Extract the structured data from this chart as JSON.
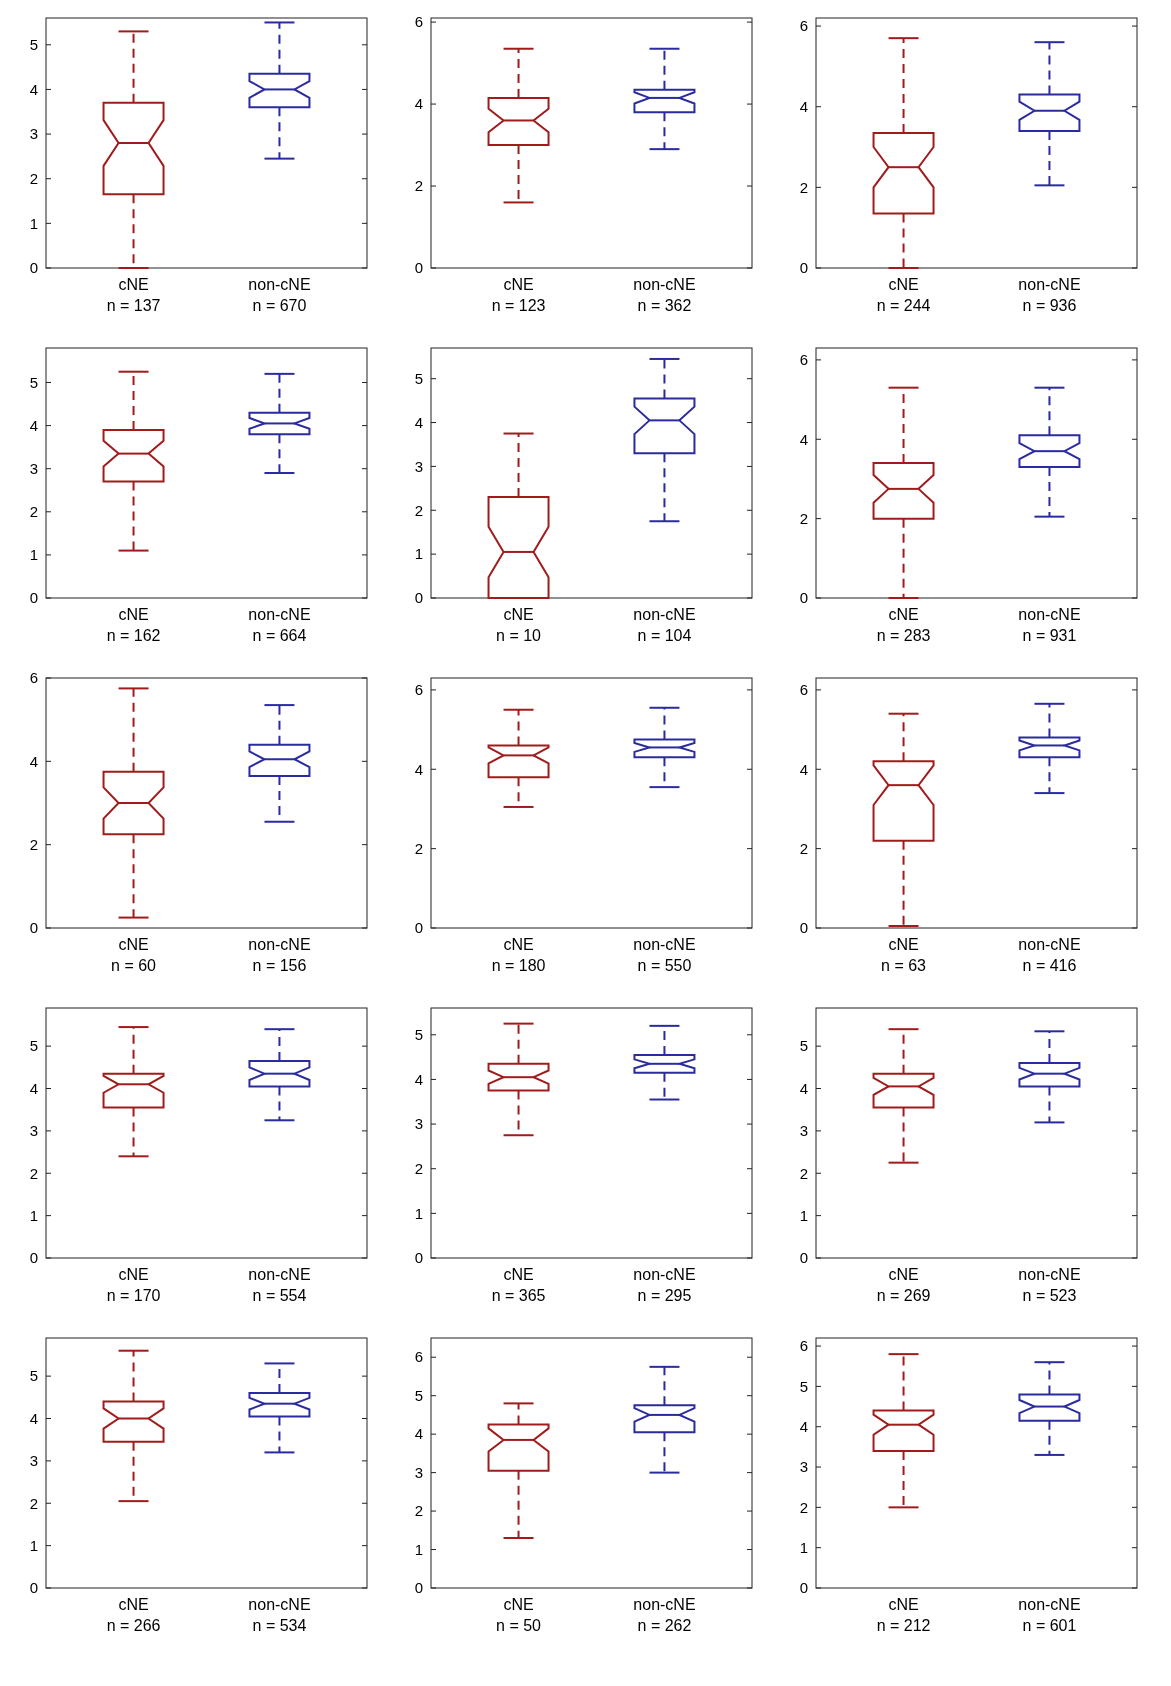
{
  "chart_data": [
    {
      "type": "box",
      "categories": [
        "cNE\nn = 137",
        "non-cNE\nn = 670"
      ],
      "colors": [
        "#a01c1c",
        "#2b2ba0"
      ],
      "ylim": [
        0,
        5.6
      ],
      "yticks": [
        0,
        1,
        2,
        3,
        4,
        5
      ],
      "boxes": [
        {
          "low": 0,
          "q1": 1.65,
          "median": 2.8,
          "q3": 3.7,
          "high": 5.3
        },
        {
          "low": 2.45,
          "q1": 3.6,
          "median": 4.0,
          "q3": 4.35,
          "high": 5.5
        }
      ]
    },
    {
      "type": "box",
      "categories": [
        "cNE\nn = 123",
        "non-cNE\nn = 362"
      ],
      "colors": [
        "#a01c1c",
        "#2b2ba0"
      ],
      "ylim": [
        0,
        6.1
      ],
      "yticks": [
        0,
        2,
        4,
        6
      ],
      "boxes": [
        {
          "low": 1.6,
          "q1": 3.0,
          "median": 3.6,
          "q3": 4.15,
          "high": 5.35
        },
        {
          "low": 2.9,
          "q1": 3.8,
          "median": 4.15,
          "q3": 4.35,
          "high": 5.35
        }
      ]
    },
    {
      "type": "box",
      "categories": [
        "cNE\nn = 244",
        "non-cNE\nn = 936"
      ],
      "colors": [
        "#a01c1c",
        "#2b2ba0"
      ],
      "ylim": [
        0,
        6.2
      ],
      "yticks": [
        0,
        2,
        4,
        6
      ],
      "boxes": [
        {
          "low": 0,
          "q1": 1.35,
          "median": 2.5,
          "q3": 3.35,
          "high": 5.7
        },
        {
          "low": 2.05,
          "q1": 3.4,
          "median": 3.9,
          "q3": 4.3,
          "high": 5.6
        }
      ]
    },
    {
      "type": "box",
      "categories": [
        "cNE\nn = 162",
        "non-cNE\nn = 664"
      ],
      "colors": [
        "#a01c1c",
        "#2b2ba0"
      ],
      "ylim": [
        0,
        5.8
      ],
      "yticks": [
        0,
        1,
        2,
        3,
        4,
        5
      ],
      "boxes": [
        {
          "low": 1.1,
          "q1": 2.7,
          "median": 3.35,
          "q3": 3.9,
          "high": 5.25
        },
        {
          "low": 2.9,
          "q1": 3.8,
          "median": 4.05,
          "q3": 4.3,
          "high": 5.2
        }
      ]
    },
    {
      "type": "box",
      "categories": [
        "cNE\nn = 10",
        "non-cNE\nn = 104"
      ],
      "colors": [
        "#a01c1c",
        "#2b2ba0"
      ],
      "ylim": [
        0,
        5.7
      ],
      "yticks": [
        0,
        1,
        2,
        3,
        4,
        5
      ],
      "boxes": [
        {
          "low": 0,
          "q1": 0,
          "median": 1.05,
          "q3": 2.3,
          "high": 3.75
        },
        {
          "low": 1.75,
          "q1": 3.3,
          "median": 4.05,
          "q3": 4.55,
          "high": 5.45
        }
      ]
    },
    {
      "type": "box",
      "categories": [
        "cNE\nn = 283",
        "non-cNE\nn = 931"
      ],
      "colors": [
        "#a01c1c",
        "#2b2ba0"
      ],
      "ylim": [
        0,
        6.3
      ],
      "yticks": [
        0,
        2,
        4,
        6
      ],
      "boxes": [
        {
          "low": 0,
          "q1": 2.0,
          "median": 2.75,
          "q3": 3.4,
          "high": 5.3
        },
        {
          "low": 2.05,
          "q1": 3.3,
          "median": 3.7,
          "q3": 4.1,
          "high": 5.3
        }
      ]
    },
    {
      "type": "box",
      "categories": [
        "cNE\nn = 60",
        "non-cNE\nn = 156"
      ],
      "colors": [
        "#a01c1c",
        "#2b2ba0"
      ],
      "ylim": [
        0,
        6
      ],
      "yticks": [
        0,
        2,
        4,
        6
      ],
      "boxes": [
        {
          "low": 0.25,
          "q1": 2.25,
          "median": 3.0,
          "q3": 3.75,
          "high": 5.75
        },
        {
          "low": 2.55,
          "q1": 3.65,
          "median": 4.05,
          "q3": 4.4,
          "high": 5.35
        }
      ]
    },
    {
      "type": "box",
      "categories": [
        "cNE\nn = 180",
        "non-cNE\nn = 550"
      ],
      "colors": [
        "#a01c1c",
        "#2b2ba0"
      ],
      "ylim": [
        0,
        6.3
      ],
      "yticks": [
        0,
        2,
        4,
        6
      ],
      "boxes": [
        {
          "low": 3.05,
          "q1": 3.8,
          "median": 4.35,
          "q3": 4.6,
          "high": 5.5
        },
        {
          "low": 3.55,
          "q1": 4.3,
          "median": 4.55,
          "q3": 4.75,
          "high": 5.55
        }
      ]
    },
    {
      "type": "box",
      "categories": [
        "cNE\nn = 63",
        "non-cNE\nn = 416"
      ],
      "colors": [
        "#a01c1c",
        "#2b2ba0"
      ],
      "ylim": [
        0,
        6.3
      ],
      "yticks": [
        0,
        2,
        4,
        6
      ],
      "boxes": [
        {
          "low": 0.05,
          "q1": 2.2,
          "median": 3.6,
          "q3": 4.2,
          "high": 5.4
        },
        {
          "low": 3.4,
          "q1": 4.3,
          "median": 4.6,
          "q3": 4.8,
          "high": 5.65
        }
      ]
    },
    {
      "type": "box",
      "categories": [
        "cNE\nn = 170",
        "non-cNE\nn = 554"
      ],
      "colors": [
        "#a01c1c",
        "#2b2ba0"
      ],
      "ylim": [
        0,
        5.9
      ],
      "yticks": [
        0,
        1,
        2,
        3,
        4,
        5
      ],
      "boxes": [
        {
          "low": 2.4,
          "q1": 3.55,
          "median": 4.1,
          "q3": 4.35,
          "high": 5.45
        },
        {
          "low": 3.25,
          "q1": 4.05,
          "median": 4.35,
          "q3": 4.65,
          "high": 5.4
        }
      ]
    },
    {
      "type": "box",
      "categories": [
        "cNE\nn = 365",
        "non-cNE\nn = 295"
      ],
      "colors": [
        "#a01c1c",
        "#2b2ba0"
      ],
      "ylim": [
        0,
        5.6
      ],
      "yticks": [
        0,
        1,
        2,
        3,
        4,
        5
      ],
      "boxes": [
        {
          "low": 2.75,
          "q1": 3.75,
          "median": 4.05,
          "q3": 4.35,
          "high": 5.25
        },
        {
          "low": 3.55,
          "q1": 4.15,
          "median": 4.35,
          "q3": 4.55,
          "high": 5.2
        }
      ]
    },
    {
      "type": "box",
      "categories": [
        "cNE\nn = 269",
        "non-cNE\nn = 523"
      ],
      "colors": [
        "#a01c1c",
        "#2b2ba0"
      ],
      "ylim": [
        0,
        5.9
      ],
      "yticks": [
        0,
        1,
        2,
        3,
        4,
        5
      ],
      "boxes": [
        {
          "low": 2.25,
          "q1": 3.55,
          "median": 4.05,
          "q3": 4.35,
          "high": 5.4
        },
        {
          "low": 3.2,
          "q1": 4.05,
          "median": 4.35,
          "q3": 4.6,
          "high": 5.35
        }
      ]
    },
    {
      "type": "box",
      "categories": [
        "cNE\nn = 266",
        "non-cNE\nn = 534"
      ],
      "colors": [
        "#a01c1c",
        "#2b2ba0"
      ],
      "ylim": [
        0,
        5.9
      ],
      "yticks": [
        0,
        1,
        2,
        3,
        4,
        5
      ],
      "boxes": [
        {
          "low": 2.05,
          "q1": 3.45,
          "median": 4.0,
          "q3": 4.4,
          "high": 5.6
        },
        {
          "low": 3.2,
          "q1": 4.05,
          "median": 4.35,
          "q3": 4.6,
          "high": 5.3
        }
      ]
    },
    {
      "type": "box",
      "categories": [
        "cNE\nn = 50",
        "non-cNE\nn = 262"
      ],
      "colors": [
        "#a01c1c",
        "#2b2ba0"
      ],
      "ylim": [
        0,
        6.5
      ],
      "yticks": [
        0,
        1,
        2,
        3,
        4,
        5,
        6
      ],
      "boxes": [
        {
          "low": 1.3,
          "q1": 3.05,
          "median": 3.85,
          "q3": 4.25,
          "high": 4.8
        },
        {
          "low": 3.0,
          "q1": 4.05,
          "median": 4.5,
          "q3": 4.75,
          "high": 5.75
        }
      ]
    },
    {
      "type": "box",
      "categories": [
        "cNE\nn = 212",
        "non-cNE\nn = 601"
      ],
      "colors": [
        "#a01c1c",
        "#2b2ba0"
      ],
      "ylim": [
        0,
        6.2
      ],
      "yticks": [
        0,
        1,
        2,
        3,
        4,
        5,
        6
      ],
      "boxes": [
        {
          "low": 2.0,
          "q1": 3.4,
          "median": 4.05,
          "q3": 4.4,
          "high": 5.8
        },
        {
          "low": 3.3,
          "q1": 4.15,
          "median": 4.5,
          "q3": 4.8,
          "high": 5.6
        }
      ]
    }
  ]
}
